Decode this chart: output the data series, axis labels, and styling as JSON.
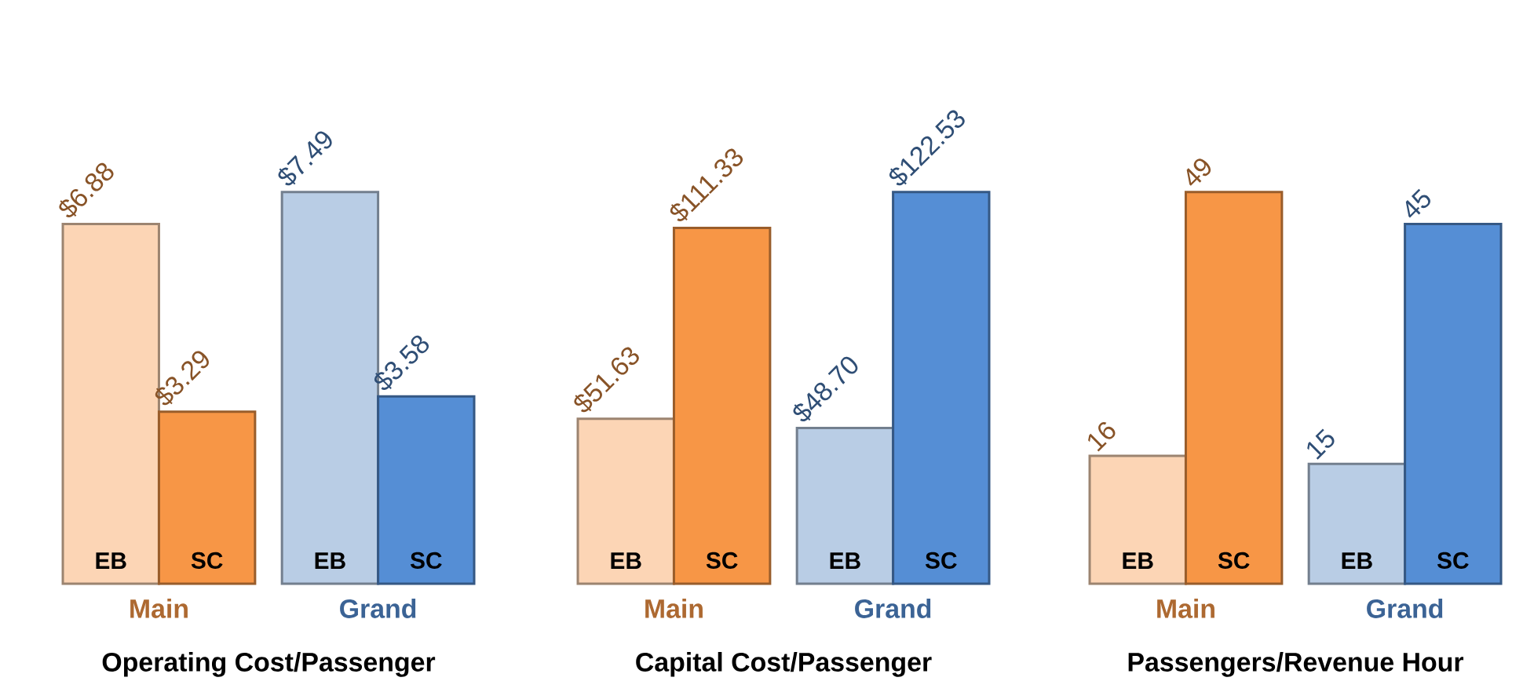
{
  "chart_data": [
    {
      "type": "bar",
      "xlabel": "Operating Cost/Passenger",
      "categories": [
        "EB",
        "SC",
        "EB",
        "SC"
      ],
      "values": [
        6.88,
        3.29,
        7.49,
        3.58
      ],
      "value_labels": [
        "$6.88",
        "$3.29",
        "$7.49",
        "$3.58"
      ],
      "colors": [
        "#fcd5b5",
        "#f79646",
        "#b9cde5",
        "#558ed5"
      ],
      "annotations": [
        "Main",
        "Grand"
      ],
      "tick_labels": "x"
    },
    {
      "type": "bar",
      "xlabel": "Capital Cost/Passenger",
      "categories": [
        "EB",
        "SC",
        "EB",
        "SC"
      ],
      "values": [
        51.63,
        111.33,
        48.7,
        122.53
      ],
      "value_labels": [
        "$51.63",
        "$111.33",
        "$48.70",
        "$122.53"
      ],
      "colors": [
        "#fcd5b5",
        "#f79646",
        "#b9cde5",
        "#558ed5"
      ],
      "annotations": [
        "Main",
        "Grand"
      ],
      "tick_labels": "x"
    },
    {
      "type": "bar",
      "xlabel": "Passengers/Revenue Hour",
      "categories": [
        "EB",
        "SC",
        "EB",
        "SC"
      ],
      "values": [
        16,
        49,
        15,
        45
      ],
      "data_labels": true,
      "colors": [
        "#fcd5b5",
        "#f79646",
        "#b9cde5",
        "#558ed5"
      ],
      "annotations": [
        "Main",
        "Grand"
      ],
      "tick_labels": "x"
    }
  ]
}
